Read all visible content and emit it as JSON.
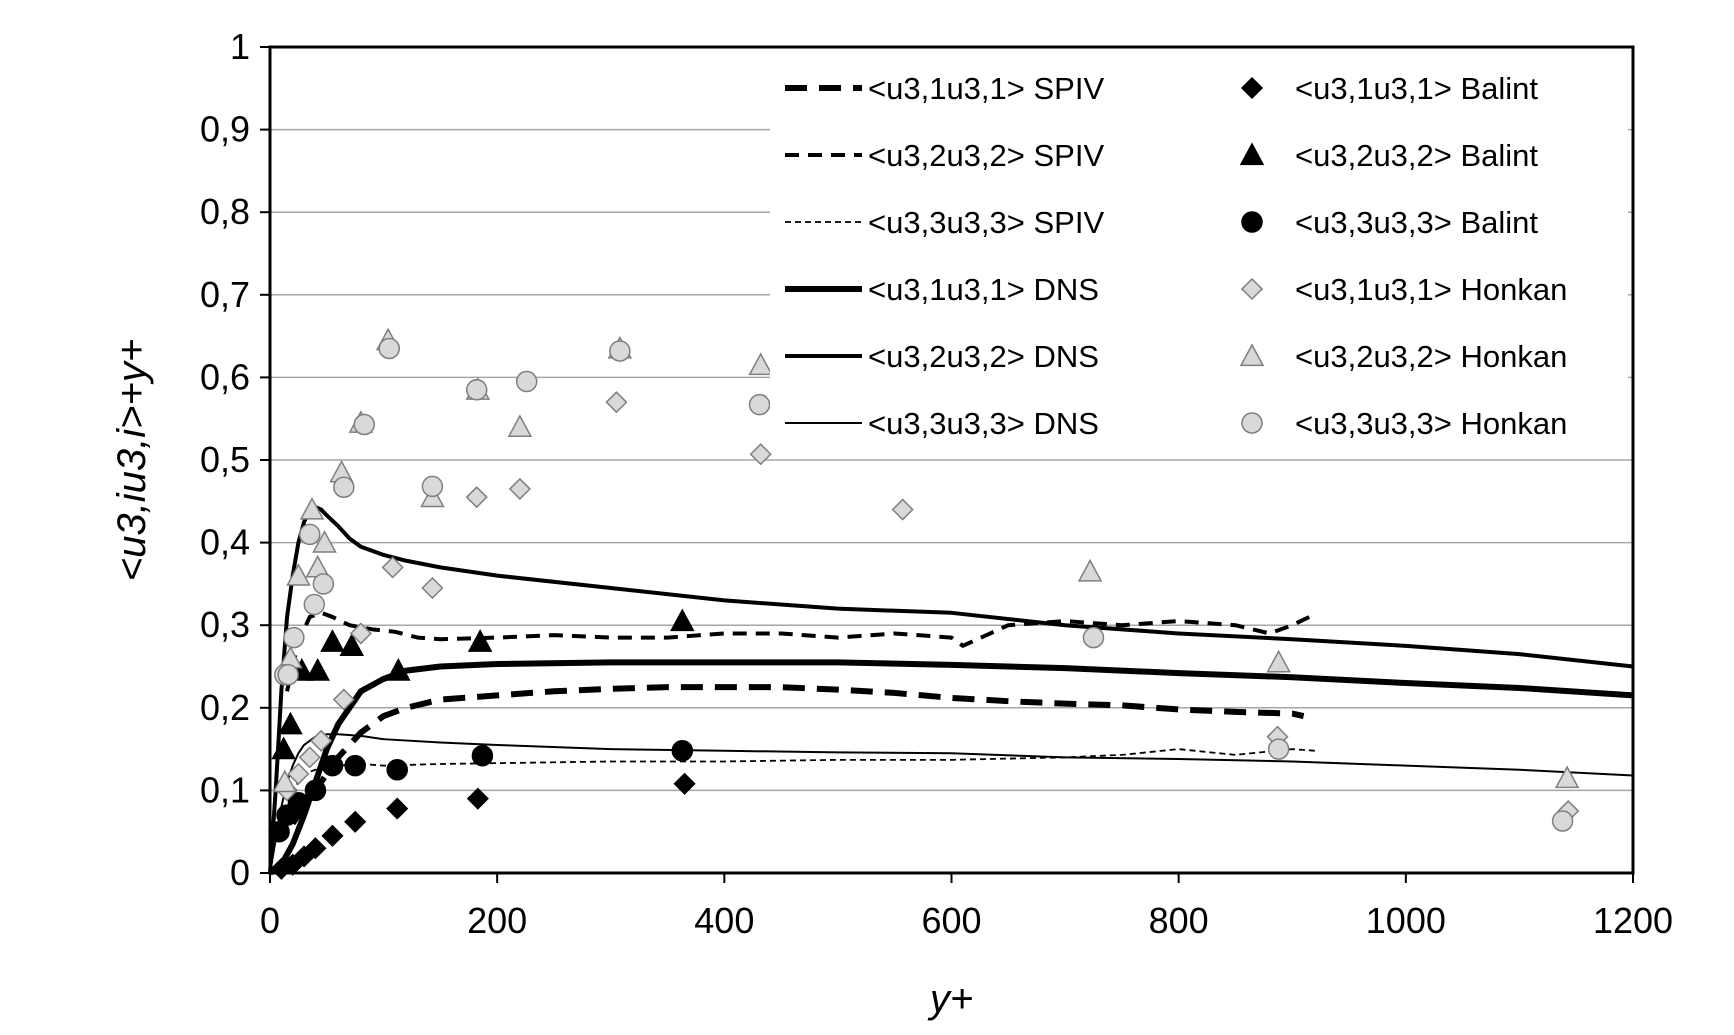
{
  "chart_data": {
    "type": "scatter",
    "xlabel": "y+",
    "ylabel": "<u3,iu3,i>+y+",
    "xlim": [
      0,
      1200
    ],
    "ylim": [
      0,
      1
    ],
    "xticks": [
      0,
      200,
      400,
      600,
      800,
      1000,
      1200
    ],
    "yticks": [
      0,
      0.1,
      0.2,
      0.3,
      0.4,
      0.5,
      0.6,
      0.7,
      0.8,
      0.9,
      1
    ],
    "xtick_labels": [
      "0",
      "200",
      "400",
      "600",
      "800",
      "1000",
      "1200"
    ],
    "ytick_labels": [
      "0",
      "0,1",
      "0,2",
      "0,3",
      "0,4",
      "0,5",
      "0,6",
      "0,7",
      "0,8",
      "0,9",
      "1"
    ],
    "grid": "horizontal",
    "legend_position": "top-right",
    "series": [
      {
        "name": "<u3,1u3,1> SPIV",
        "kind": "line",
        "style": "thick-dash",
        "x": [
          20,
          40,
          60,
          80,
          100,
          120,
          150,
          200,
          250,
          300,
          350,
          400,
          450,
          500,
          550,
          600,
          650,
          700,
          750,
          800,
          850,
          900,
          910
        ],
        "y": [
          0.06,
          0.1,
          0.14,
          0.17,
          0.19,
          0.2,
          0.21,
          0.215,
          0.22,
          0.223,
          0.225,
          0.225,
          0.225,
          0.222,
          0.218,
          0.212,
          0.208,
          0.205,
          0.203,
          0.198,
          0.195,
          0.193,
          0.19
        ]
      },
      {
        "name": "<u3,2u3,2> SPIV",
        "kind": "line",
        "style": "dash",
        "x": [
          15,
          25,
          35,
          45,
          55,
          70,
          90,
          110,
          130,
          150,
          200,
          250,
          300,
          350,
          400,
          450,
          500,
          550,
          600,
          610,
          650,
          700,
          750,
          800,
          850,
          880,
          900,
          915
        ],
        "y": [
          0.22,
          0.28,
          0.31,
          0.315,
          0.31,
          0.3,
          0.295,
          0.292,
          0.285,
          0.283,
          0.285,
          0.288,
          0.285,
          0.285,
          0.29,
          0.29,
          0.285,
          0.29,
          0.285,
          0.275,
          0.3,
          0.305,
          0.3,
          0.305,
          0.3,
          0.29,
          0.3,
          0.31
        ]
      },
      {
        "name": "<u3,3u3,3> SPIV",
        "kind": "line",
        "style": "fine-dash",
        "x": [
          10,
          20,
          30,
          40,
          60,
          80,
          100,
          150,
          200,
          300,
          400,
          500,
          600,
          700,
          750,
          800,
          850,
          900,
          920
        ],
        "y": [
          0.05,
          0.1,
          0.12,
          0.125,
          0.13,
          0.132,
          0.13,
          0.132,
          0.133,
          0.135,
          0.135,
          0.137,
          0.137,
          0.14,
          0.143,
          0.15,
          0.143,
          0.15,
          0.148
        ]
      },
      {
        "name": "<u3,1u3,1> DNS",
        "kind": "line",
        "style": "thick-solid",
        "x": [
          0,
          10,
          20,
          30,
          40,
          50,
          60,
          70,
          80,
          100,
          120,
          150,
          200,
          300,
          400,
          500,
          600,
          700,
          800,
          900,
          1000,
          1100,
          1200
        ],
        "y": [
          0,
          0.01,
          0.035,
          0.07,
          0.11,
          0.15,
          0.18,
          0.2,
          0.22,
          0.235,
          0.245,
          0.25,
          0.253,
          0.255,
          0.255,
          0.255,
          0.252,
          0.248,
          0.242,
          0.237,
          0.23,
          0.224,
          0.215
        ]
      },
      {
        "name": "<u3,2u3,2> DNS",
        "kind": "line",
        "style": "solid",
        "x": [
          0,
          5,
          10,
          15,
          20,
          25,
          30,
          35,
          40,
          45,
          50,
          60,
          70,
          80,
          100,
          120,
          150,
          200,
          300,
          400,
          500,
          600,
          700,
          800,
          900,
          1000,
          1100,
          1200
        ],
        "y": [
          0,
          0.1,
          0.22,
          0.31,
          0.36,
          0.4,
          0.425,
          0.44,
          0.443,
          0.44,
          0.433,
          0.42,
          0.405,
          0.395,
          0.385,
          0.378,
          0.37,
          0.36,
          0.345,
          0.33,
          0.32,
          0.315,
          0.3,
          0.29,
          0.283,
          0.275,
          0.265,
          0.25
        ]
      },
      {
        "name": "<u3,3u3,3> DNS",
        "kind": "line",
        "style": "thin-solid",
        "x": [
          0,
          5,
          10,
          15,
          20,
          25,
          30,
          35,
          40,
          50,
          60,
          80,
          100,
          150,
          200,
          300,
          400,
          500,
          600,
          700,
          800,
          900,
          1000,
          1100,
          1200
        ],
        "y": [
          0,
          0.04,
          0.08,
          0.11,
          0.13,
          0.145,
          0.155,
          0.16,
          0.165,
          0.168,
          0.168,
          0.166,
          0.162,
          0.158,
          0.155,
          0.15,
          0.148,
          0.146,
          0.145,
          0.14,
          0.138,
          0.135,
          0.13,
          0.125,
          0.118
        ]
      },
      {
        "name": "<u3,1u3,1> Balint",
        "kind": "marker",
        "marker": "diamond-black",
        "x": [
          10,
          20,
          30,
          40,
          55,
          75,
          112,
          183,
          365
        ],
        "y": [
          0.005,
          0.01,
          0.02,
          0.03,
          0.045,
          0.062,
          0.078,
          0.09,
          0.108
        ]
      },
      {
        "name": "<u3,2u3,2> Balint",
        "kind": "marker",
        "marker": "triangle-black",
        "x": [
          12,
          18,
          28,
          42,
          55,
          72,
          113,
          185,
          363
        ],
        "y": [
          0.15,
          0.18,
          0.245,
          0.245,
          0.28,
          0.275,
          0.245,
          0.28,
          0.305
        ]
      },
      {
        "name": "<u3,3u3,3> Balint",
        "kind": "marker",
        "marker": "circle-black",
        "x": [
          8,
          15,
          25,
          40,
          55,
          75,
          112,
          187,
          363
        ],
        "y": [
          0.05,
          0.07,
          0.085,
          0.1,
          0.13,
          0.13,
          0.125,
          0.142,
          0.148
        ]
      },
      {
        "name": "<u3,1u3,1> Honkan",
        "kind": "marker",
        "marker": "diamond-gray",
        "x": [
          15,
          25,
          35,
          45,
          65,
          80,
          108,
          143,
          182,
          220,
          305,
          432,
          557,
          887,
          1143
        ],
        "y": [
          0.1,
          0.12,
          0.14,
          0.16,
          0.21,
          0.29,
          0.37,
          0.345,
          0.455,
          0.465,
          0.57,
          0.507,
          0.44,
          0.165,
          0.075
        ]
      },
      {
        "name": "<u3,2u3,2> Honkan",
        "kind": "marker",
        "marker": "triangle-gray",
        "x": [
          13,
          18,
          25,
          37,
          42,
          48,
          63,
          80,
          104,
          143,
          183,
          220,
          308,
          432,
          722,
          888,
          1142
        ],
        "y": [
          0.11,
          0.26,
          0.36,
          0.44,
          0.37,
          0.4,
          0.485,
          0.545,
          0.645,
          0.455,
          0.585,
          0.54,
          0.635,
          0.615,
          0.365,
          0.255,
          0.115
        ]
      },
      {
        "name": "<u3,3u3,3> Honkan",
        "kind": "marker",
        "marker": "circle-gray",
        "x": [
          13,
          16,
          21,
          35,
          39,
          47,
          65,
          83,
          105,
          143,
          182,
          226,
          308,
          431,
          725,
          888,
          1138
        ],
        "y": [
          0.24,
          0.24,
          0.285,
          0.41,
          0.325,
          0.35,
          0.467,
          0.543,
          0.635,
          0.468,
          0.585,
          0.595,
          0.632,
          0.567,
          0.285,
          0.15,
          0.063
        ]
      }
    ]
  }
}
